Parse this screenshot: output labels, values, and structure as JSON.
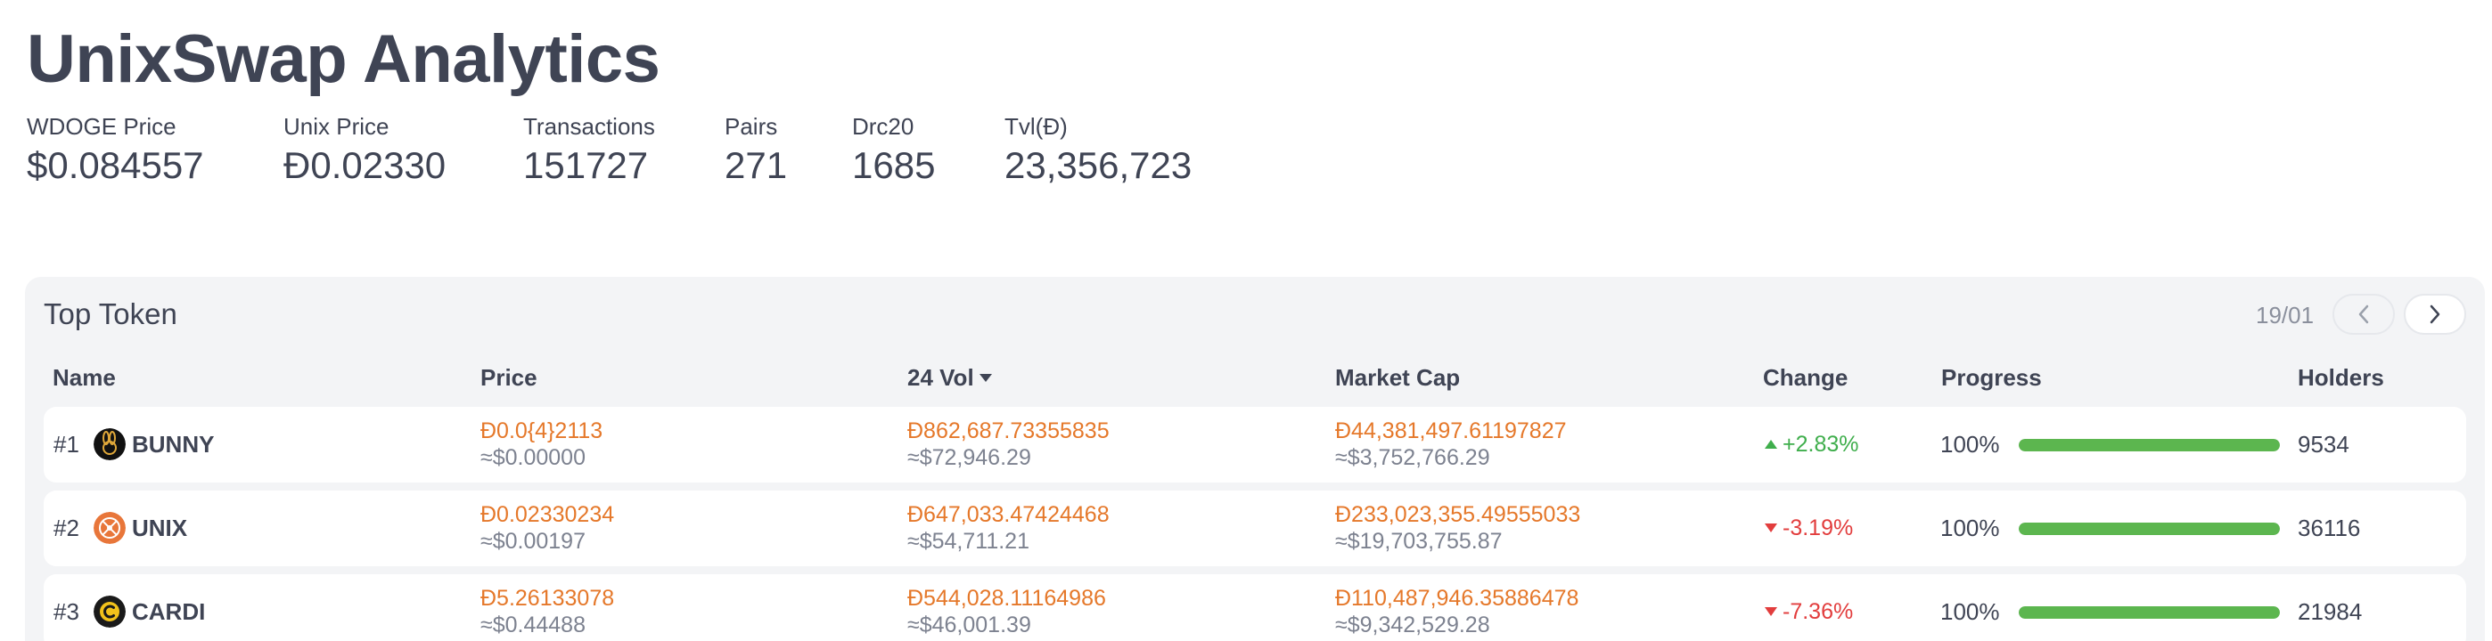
{
  "title": "UnixSwap Analytics",
  "stats": [
    {
      "label": "WDOGE Price",
      "value": "$0.084557"
    },
    {
      "label": "Unix Price",
      "value": "Đ0.02330"
    },
    {
      "label": "Transactions",
      "value": "151727"
    },
    {
      "label": "Pairs",
      "value": "271"
    },
    {
      "label": "Drc20",
      "value": "1685"
    },
    {
      "label": "Tvl(Đ)",
      "value": "23,356,723"
    }
  ],
  "top_token": {
    "title": "Top Token",
    "pager": "19/01",
    "columns": {
      "name": "Name",
      "price": "Price",
      "vol": "24 Vol",
      "mcap": "Market Cap",
      "change": "Change",
      "progress": "Progress",
      "holders": "Holders"
    },
    "rows": [
      {
        "rank": "#1",
        "name": "BUNNY",
        "icon": "bunny-token-icon",
        "price": "Đ0.0{4}2113",
        "price_usd": "≈$0.00000",
        "vol": "Đ862,687.73355835",
        "vol_usd": "≈$72,946.29",
        "mcap": "Đ44,381,497.61197827",
        "mcap_usd": "≈$3,752,766.29",
        "change": "+2.83%",
        "direction": "up",
        "progress_text": "100%",
        "progress": 1.0,
        "holders": "9534"
      },
      {
        "rank": "#2",
        "name": "UNIX",
        "icon": "unix-token-icon",
        "price": "Đ0.02330234",
        "price_usd": "≈$0.00197",
        "vol": "Đ647,033.47424468",
        "vol_usd": "≈$54,711.21",
        "mcap": "Đ233,023,355.49555033",
        "mcap_usd": "≈$19,703,755.87",
        "change": "-3.19%",
        "direction": "down",
        "progress_text": "100%",
        "progress": 1.0,
        "holders": "36116"
      },
      {
        "rank": "#3",
        "name": "CARDI",
        "icon": "cardi-token-icon",
        "price": "Đ5.26133078",
        "price_usd": "≈$0.44488",
        "vol": "Đ544,028.11164986",
        "vol_usd": "≈$46,001.39",
        "mcap": "Đ110,487,946.35886478",
        "mcap_usd": "≈$9,342,529.28",
        "change": "-7.36%",
        "direction": "down",
        "progress_text": "100%",
        "progress": 1.0,
        "holders": "21984"
      }
    ]
  },
  "colors": {
    "accent_orange": "#e5782a",
    "up_green": "#3fae4c",
    "down_red": "#e23d3d",
    "progress_green": "#5cb64f"
  }
}
